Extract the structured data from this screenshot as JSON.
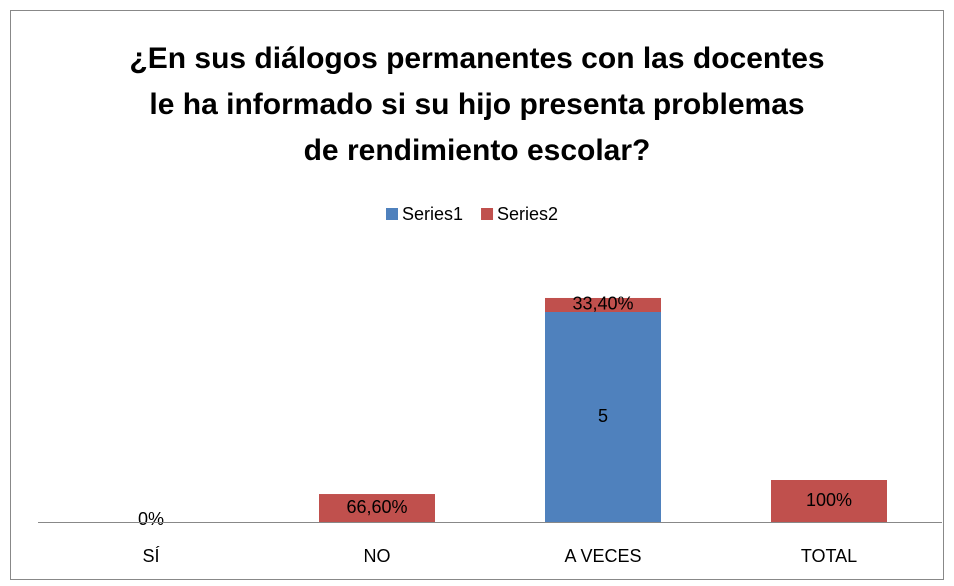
{
  "chart_data": {
    "type": "stacked_bar",
    "title": [
      "¿En sus diálogos permanentes con las docentes",
      "le ha informado si su hijo presenta problemas",
      "de rendimiento escolar?"
    ],
    "categories": [
      "SÍ",
      "NO",
      "A VECES",
      "TOTAL"
    ],
    "series": [
      {
        "name": "Series1",
        "color": "#4f81bd",
        "values": [
          null,
          null,
          5,
          null
        ],
        "value_labels": [
          null,
          null,
          "5",
          null
        ]
      },
      {
        "name": "Series2",
        "color": "#c0504d",
        "values": [
          0,
          0.666,
          0.334,
          1
        ],
        "value_labels": [
          "0%",
          "66,60%",
          "33,40%",
          "100%"
        ]
      }
    ],
    "ylim": [
      0,
      6
    ],
    "legend": "top"
  }
}
